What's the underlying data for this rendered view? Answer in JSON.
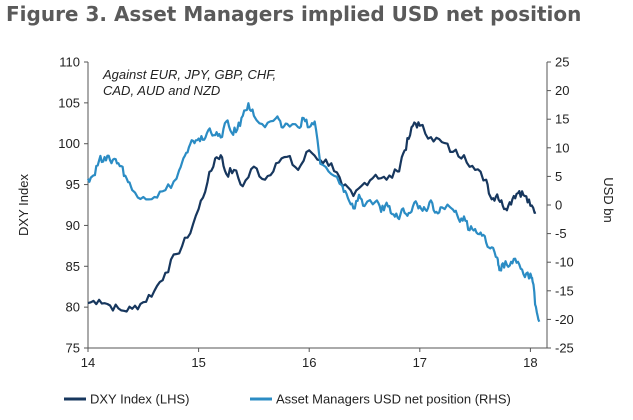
{
  "figure_title": "Figure 3. Asset Managers implied USD net position",
  "chart_data": {
    "type": "line",
    "annotation": [
      "Against EUR, JPY, GBP, CHF,",
      "CAD, AUD and NZD"
    ],
    "x_axis": {
      "min": 14,
      "max": 18.15,
      "ticks": [
        14,
        15,
        16,
        17,
        18
      ],
      "tick_labels": [
        "14",
        "15",
        "16",
        "17",
        "18"
      ]
    },
    "y_left": {
      "label": "DXY Index",
      "min": 75,
      "max": 110,
      "ticks": [
        75,
        80,
        85,
        90,
        95,
        100,
        105,
        110
      ]
    },
    "y_right": {
      "label": "USD bn",
      "min": -25,
      "max": 25,
      "ticks": [
        -25,
        -20,
        -15,
        -10,
        -5,
        0,
        5,
        10,
        15,
        20,
        25
      ]
    },
    "grid": false,
    "legend_position": "bottom",
    "series": [
      {
        "name": "DXY Index (LHS)",
        "axis": "left",
        "color": "#17375e",
        "points": [
          [
            14.0,
            80.5
          ],
          [
            14.1,
            80.9
          ],
          [
            14.2,
            80.2
          ],
          [
            14.3,
            79.6
          ],
          [
            14.4,
            79.8
          ],
          [
            14.5,
            80.6
          ],
          [
            14.6,
            82.0
          ],
          [
            14.7,
            84.2
          ],
          [
            14.8,
            86.5
          ],
          [
            14.9,
            88.5
          ],
          [
            15.0,
            92.0
          ],
          [
            15.08,
            95.3
          ],
          [
            15.15,
            98.2
          ],
          [
            15.2,
            98.6
          ],
          [
            15.25,
            96.3
          ],
          [
            15.32,
            96.8
          ],
          [
            15.4,
            94.8
          ],
          [
            15.5,
            97.2
          ],
          [
            15.6,
            95.6
          ],
          [
            15.7,
            97.6
          ],
          [
            15.8,
            98.4
          ],
          [
            15.9,
            96.8
          ],
          [
            16.0,
            99.2
          ],
          [
            16.1,
            98.0
          ],
          [
            16.2,
            97.6
          ],
          [
            16.3,
            94.8
          ],
          [
            16.4,
            93.6
          ],
          [
            16.5,
            95.2
          ],
          [
            16.6,
            96.2
          ],
          [
            16.7,
            95.6
          ],
          [
            16.8,
            96.6
          ],
          [
            16.85,
            98.8
          ],
          [
            16.9,
            100.6
          ],
          [
            16.95,
            102.6
          ],
          [
            17.0,
            102.2
          ],
          [
            17.1,
            100.8
          ],
          [
            17.2,
            100.2
          ],
          [
            17.3,
            99.0
          ],
          [
            17.4,
            98.6
          ],
          [
            17.5,
            96.8
          ],
          [
            17.6,
            95.6
          ],
          [
            17.65,
            93.2
          ],
          [
            17.7,
            93.8
          ],
          [
            17.75,
            92.4
          ],
          [
            17.8,
            92.4
          ],
          [
            17.85,
            93.6
          ],
          [
            17.9,
            94.2
          ],
          [
            17.95,
            93.6
          ],
          [
            18.0,
            92.4
          ],
          [
            18.05,
            91.6
          ]
        ]
      },
      {
        "name": "Asset Managers USD net position (RHS)",
        "axis": "right",
        "color": "#2b8cc4",
        "points": [
          [
            14.0,
            4.6
          ],
          [
            14.05,
            5.2
          ],
          [
            14.1,
            7.8
          ],
          [
            14.15,
            8.4
          ],
          [
            14.2,
            7.8
          ],
          [
            14.25,
            8.0
          ],
          [
            14.3,
            6.8
          ],
          [
            14.35,
            4.6
          ],
          [
            14.4,
            2.6
          ],
          [
            14.5,
            1.4
          ],
          [
            14.6,
            1.4
          ],
          [
            14.7,
            2.6
          ],
          [
            14.8,
            4.6
          ],
          [
            14.85,
            7.4
          ],
          [
            14.9,
            9.2
          ],
          [
            14.95,
            11.2
          ],
          [
            15.0,
            11.6
          ],
          [
            15.05,
            11.4
          ],
          [
            15.1,
            13.4
          ],
          [
            15.15,
            12.2
          ],
          [
            15.2,
            11.8
          ],
          [
            15.25,
            14.6
          ],
          [
            15.3,
            12.6
          ],
          [
            15.35,
            13.2
          ],
          [
            15.4,
            15.6
          ],
          [
            15.45,
            17.8
          ],
          [
            15.5,
            15.6
          ],
          [
            15.6,
            13.6
          ],
          [
            15.7,
            15.2
          ],
          [
            15.75,
            13.6
          ],
          [
            15.8,
            14.2
          ],
          [
            15.9,
            13.6
          ],
          [
            15.95,
            15.2
          ],
          [
            16.0,
            13.6
          ],
          [
            16.05,
            14.6
          ],
          [
            16.1,
            7.2
          ],
          [
            16.2,
            5.4
          ],
          [
            16.3,
            3.4
          ],
          [
            16.35,
            1.2
          ],
          [
            16.4,
            -0.6
          ],
          [
            16.45,
            1.8
          ],
          [
            16.5,
            -0.2
          ],
          [
            16.6,
            0.6
          ],
          [
            16.65,
            -1.2
          ],
          [
            16.7,
            0.4
          ],
          [
            16.75,
            -1.6
          ],
          [
            16.8,
            -2.2
          ],
          [
            16.85,
            -0.6
          ],
          [
            16.9,
            -1.4
          ],
          [
            16.95,
            0.4
          ],
          [
            17.0,
            -0.2
          ],
          [
            17.05,
            -0.8
          ],
          [
            17.1,
            0.8
          ],
          [
            17.15,
            -1.2
          ],
          [
            17.2,
            -0.4
          ],
          [
            17.3,
            -0.8
          ],
          [
            17.35,
            -2.4
          ],
          [
            17.4,
            -2.0
          ],
          [
            17.45,
            -4.4
          ],
          [
            17.5,
            -4.2
          ],
          [
            17.55,
            -4.8
          ],
          [
            17.6,
            -6.6
          ],
          [
            17.65,
            -7.4
          ],
          [
            17.7,
            -9.2
          ],
          [
            17.72,
            -11.4
          ],
          [
            17.75,
            -10.2
          ],
          [
            17.8,
            -10.8
          ],
          [
            17.85,
            -9.4
          ],
          [
            17.9,
            -10.4
          ],
          [
            17.95,
            -12.6
          ],
          [
            18.0,
            -12.0
          ],
          [
            18.02,
            -13.4
          ],
          [
            18.05,
            -17.8
          ],
          [
            18.08,
            -20.4
          ]
        ]
      }
    ]
  }
}
